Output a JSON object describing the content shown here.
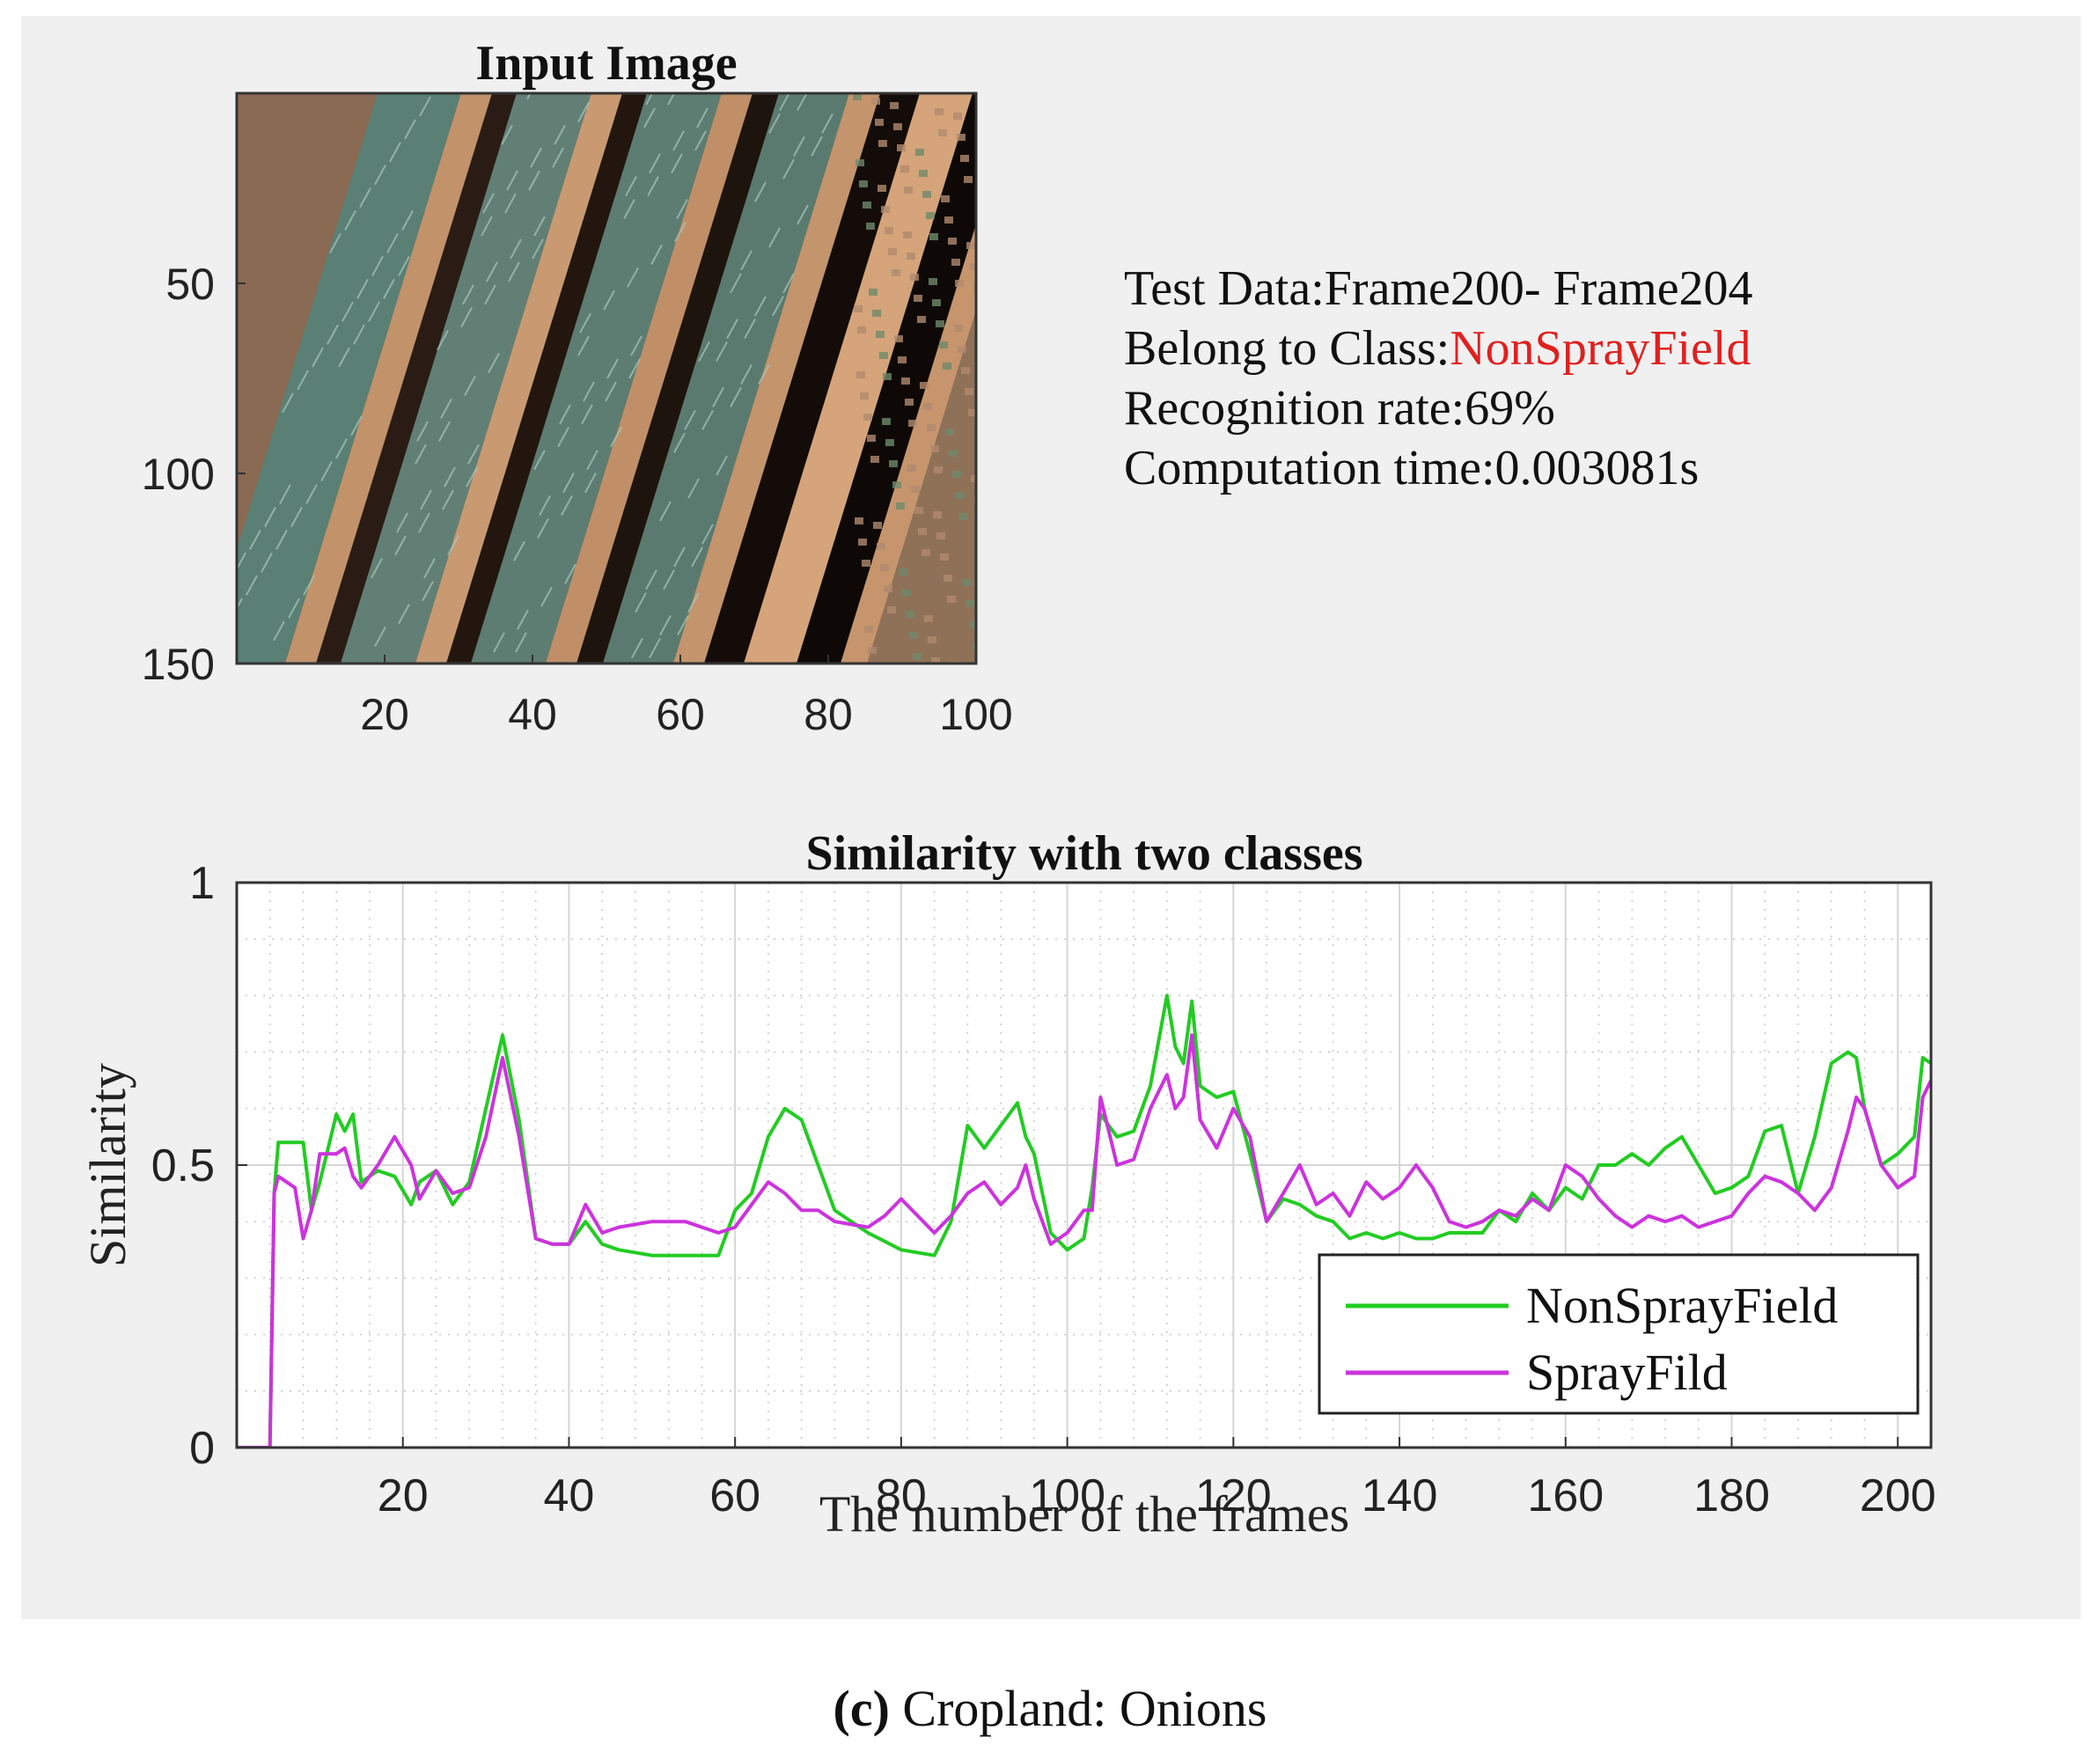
{
  "image_panel": {
    "title": "Input Image",
    "x_ticks": [
      "20",
      "40",
      "60",
      "80",
      "100"
    ],
    "y_ticks": [
      "50",
      "100",
      "150"
    ],
    "x_tick_values": [
      20,
      40,
      60,
      80,
      100
    ],
    "y_tick_values": [
      50,
      100,
      150
    ],
    "xlim": [
      0,
      100
    ],
    "ylim": [
      0,
      150
    ]
  },
  "info": {
    "test_data": "Test Data:Frame200- Frame204",
    "class_prefix": "Belong to Class:",
    "class_value": "NonSprayField",
    "recognition_rate": "Recognition rate:69%",
    "computation_time": "Computation time:0.003081s",
    "class_value_color": "#e02020"
  },
  "caption": {
    "label": "(c)",
    "text": "Cropland: Onions"
  },
  "chart_data": {
    "type": "line",
    "title": "Similarity with two classes",
    "xlabel": "The number of the frames",
    "ylabel": "Similarity",
    "xlim": [
      0,
      204
    ],
    "ylim": [
      0,
      1
    ],
    "x_ticks": [
      20,
      40,
      60,
      80,
      100,
      120,
      140,
      160,
      180,
      200
    ],
    "y_ticks": [
      0,
      0.5,
      1
    ],
    "y_tick_labels": [
      "0",
      "0.5",
      "1"
    ],
    "grid": true,
    "legend_position": "bottom-right",
    "series": [
      {
        "name": "NonSprayField",
        "color": "#22cc22",
        "x": [
          0,
          4,
          4.5,
          5,
          8,
          9,
          10,
          12,
          13,
          14,
          15,
          17,
          19,
          21,
          22,
          24,
          26,
          28,
          30,
          32,
          34,
          36,
          38,
          40,
          42,
          44,
          46,
          50,
          54,
          58,
          60,
          62,
          64,
          66,
          68,
          70,
          72,
          76,
          80,
          84,
          86,
          88,
          90,
          92,
          94,
          95,
          96,
          98,
          100,
          102,
          103,
          104,
          106,
          108,
          110,
          112,
          113,
          114,
          115,
          116,
          118,
          120,
          122,
          124,
          126,
          128,
          130,
          132,
          134,
          136,
          138,
          140,
          142,
          144,
          146,
          148,
          150,
          152,
          154,
          156,
          158,
          160,
          162,
          164,
          166,
          168,
          170,
          172,
          174,
          176,
          178,
          180,
          182,
          184,
          186,
          188,
          190,
          192,
          194,
          195,
          196,
          198,
          200,
          202,
          203,
          204
        ],
        "y": [
          0,
          0,
          0.45,
          0.54,
          0.54,
          0.42,
          0.47,
          0.59,
          0.56,
          0.59,
          0.47,
          0.49,
          0.48,
          0.43,
          0.47,
          0.49,
          0.43,
          0.47,
          0.6,
          0.73,
          0.58,
          0.37,
          0.36,
          0.36,
          0.4,
          0.36,
          0.35,
          0.34,
          0.34,
          0.34,
          0.42,
          0.45,
          0.55,
          0.6,
          0.58,
          0.5,
          0.42,
          0.38,
          0.35,
          0.34,
          0.4,
          0.57,
          0.53,
          0.57,
          0.61,
          0.55,
          0.52,
          0.38,
          0.35,
          0.37,
          0.46,
          0.59,
          0.55,
          0.56,
          0.64,
          0.8,
          0.71,
          0.68,
          0.79,
          0.64,
          0.62,
          0.63,
          0.52,
          0.4,
          0.44,
          0.43,
          0.41,
          0.4,
          0.37,
          0.38,
          0.37,
          0.38,
          0.37,
          0.37,
          0.38,
          0.38,
          0.38,
          0.42,
          0.4,
          0.45,
          0.42,
          0.46,
          0.44,
          0.5,
          0.5,
          0.52,
          0.5,
          0.53,
          0.55,
          0.5,
          0.45,
          0.46,
          0.48,
          0.56,
          0.57,
          0.45,
          0.55,
          0.68,
          0.7,
          0.69,
          0.6,
          0.5,
          0.52,
          0.55,
          0.69,
          0.68
        ]
      },
      {
        "name": "SprayFild",
        "color": "#cc33dd",
        "x": [
          0,
          4,
          4.5,
          5,
          7,
          8,
          9,
          10,
          12,
          13,
          14,
          15,
          17,
          19,
          21,
          22,
          24,
          26,
          28,
          30,
          32,
          34,
          36,
          38,
          40,
          42,
          44,
          46,
          50,
          54,
          58,
          60,
          62,
          64,
          66,
          68,
          70,
          72,
          76,
          78,
          80,
          84,
          86,
          88,
          90,
          92,
          94,
          95,
          96,
          98,
          100,
          102,
          103,
          104,
          106,
          108,
          110,
          112,
          113,
          114,
          115,
          116,
          118,
          120,
          122,
          124,
          126,
          128,
          130,
          132,
          134,
          136,
          138,
          140,
          142,
          144,
          146,
          148,
          150,
          152,
          154,
          156,
          158,
          160,
          162,
          164,
          166,
          168,
          170,
          172,
          174,
          176,
          178,
          180,
          182,
          184,
          186,
          188,
          190,
          192,
          194,
          195,
          196,
          198,
          200,
          202,
          203,
          204
        ],
        "y": [
          0,
          0,
          0.45,
          0.48,
          0.46,
          0.37,
          0.42,
          0.52,
          0.52,
          0.53,
          0.48,
          0.46,
          0.5,
          0.55,
          0.5,
          0.44,
          0.49,
          0.45,
          0.46,
          0.55,
          0.69,
          0.55,
          0.37,
          0.36,
          0.36,
          0.43,
          0.38,
          0.39,
          0.4,
          0.4,
          0.38,
          0.39,
          0.43,
          0.47,
          0.45,
          0.42,
          0.42,
          0.4,
          0.39,
          0.41,
          0.44,
          0.38,
          0.41,
          0.45,
          0.47,
          0.43,
          0.46,
          0.5,
          0.44,
          0.36,
          0.38,
          0.42,
          0.42,
          0.62,
          0.5,
          0.51,
          0.6,
          0.66,
          0.6,
          0.62,
          0.73,
          0.58,
          0.53,
          0.6,
          0.55,
          0.4,
          0.45,
          0.5,
          0.43,
          0.45,
          0.41,
          0.47,
          0.44,
          0.46,
          0.5,
          0.46,
          0.4,
          0.39,
          0.4,
          0.42,
          0.41,
          0.44,
          0.42,
          0.5,
          0.48,
          0.44,
          0.41,
          0.39,
          0.41,
          0.4,
          0.41,
          0.39,
          0.4,
          0.41,
          0.45,
          0.48,
          0.47,
          0.45,
          0.42,
          0.46,
          0.56,
          0.62,
          0.6,
          0.5,
          0.46,
          0.48,
          0.62,
          0.65
        ]
      }
    ]
  }
}
